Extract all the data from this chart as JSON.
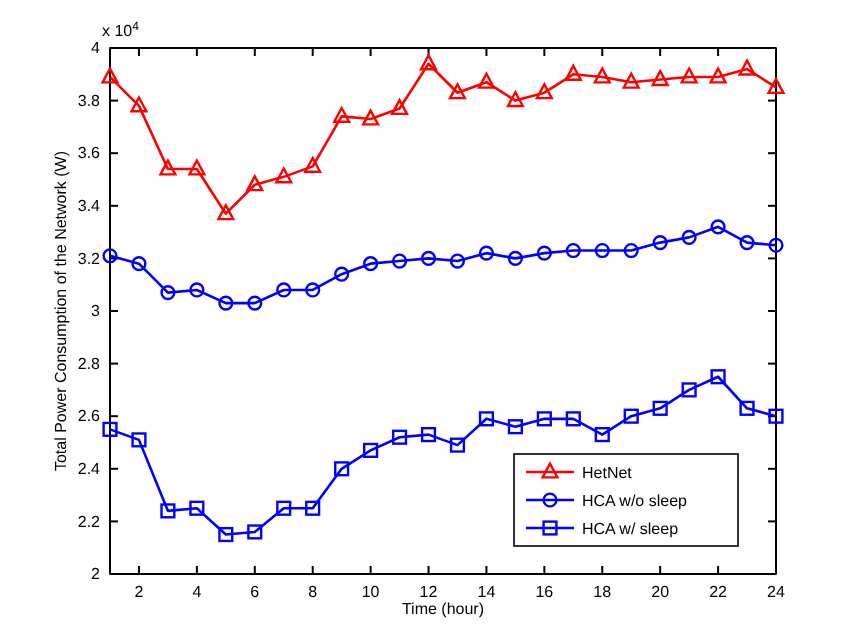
{
  "chart_data": {
    "type": "line",
    "xlabel": "Time (hour)",
    "ylabel": "Total Power Consumption of the Network (W)",
    "annotations": [
      "x 10$^{4}$"
    ],
    "x": [
      1,
      2,
      3,
      4,
      5,
      6,
      7,
      8,
      9,
      10,
      11,
      12,
      13,
      14,
      15,
      16,
      17,
      18,
      19,
      20,
      21,
      22,
      23,
      24
    ],
    "xlim": [
      1,
      24
    ],
    "xticks": [
      2,
      4,
      6,
      8,
      10,
      12,
      14,
      16,
      18,
      20,
      22,
      24
    ],
    "ylim": [
      2,
      4
    ],
    "yticks": [
      2,
      2.2,
      2.4,
      2.6,
      2.8,
      3,
      3.2,
      3.4,
      3.6,
      3.8,
      4
    ],
    "legend": "bottom right",
    "grid": false,
    "line_style": "solid",
    "series": [
      {
        "name": "HetNet",
        "color": "#ff0000",
        "marker": "triangle",
        "values": [
          3.89,
          3.78,
          3.54,
          3.54,
          3.37,
          3.48,
          3.51,
          3.55,
          3.74,
          3.73,
          3.77,
          3.94,
          3.83,
          3.87,
          3.8,
          3.83,
          3.9,
          3.89,
          3.87,
          3.88,
          3.89,
          3.89,
          3.92,
          3.85
        ]
      },
      {
        "name": "HCA w/o sleep",
        "color": "#0000ff",
        "marker": "circle",
        "values": [
          3.21,
          3.18,
          3.07,
          3.08,
          3.03,
          3.03,
          3.08,
          3.08,
          3.14,
          3.18,
          3.19,
          3.2,
          3.19,
          3.22,
          3.2,
          3.22,
          3.23,
          3.23,
          3.23,
          3.26,
          3.28,
          3.32,
          3.26,
          3.25
        ]
      },
      {
        "name": "HCA w/ sleep",
        "color": "#0000ff",
        "marker": "square",
        "values": [
          2.55,
          2.51,
          2.24,
          2.25,
          2.15,
          2.16,
          2.25,
          2.25,
          2.4,
          2.47,
          2.52,
          2.53,
          2.49,
          2.59,
          2.56,
          2.59,
          2.59,
          2.53,
          2.6,
          2.63,
          2.7,
          2.75,
          2.63,
          2.6
        ]
      }
    ]
  }
}
